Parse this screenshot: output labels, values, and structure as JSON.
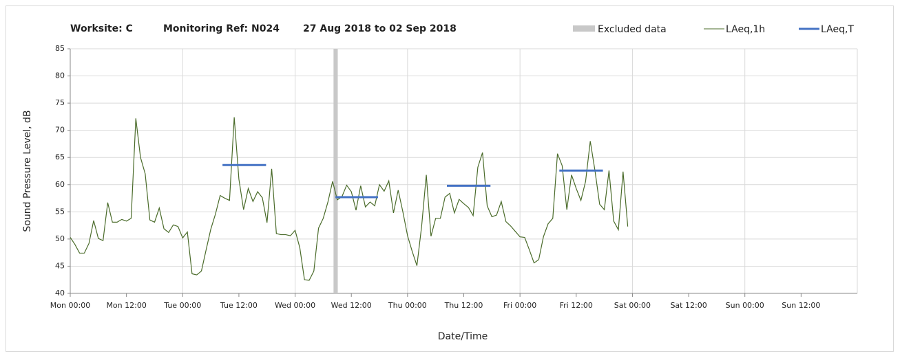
{
  "chart_data": {
    "type": "line",
    "title_parts": [
      "Worksite: C",
      "Monitoring Ref: N024",
      "27 Aug 2018 to 02 Sep 2018"
    ],
    "x_label": "Date/Time",
    "y_label": "Sound Pressure Level, dB",
    "xlim": [
      0,
      168
    ],
    "ylim": [
      40,
      85
    ],
    "yticks": [
      40,
      45,
      50,
      55,
      60,
      65,
      70,
      75,
      80,
      85
    ],
    "xticks": [
      {
        "value": 0,
        "label": "Mon 00:00"
      },
      {
        "value": 12,
        "label": "Mon 12:00"
      },
      {
        "value": 24,
        "label": "Tue 00:00"
      },
      {
        "value": 36,
        "label": "Tue 12:00"
      },
      {
        "value": 48,
        "label": "Wed 00:00"
      },
      {
        "value": 60,
        "label": "Wed 12:00"
      },
      {
        "value": 72,
        "label": "Thu 00:00"
      },
      {
        "value": 84,
        "label": "Thu 12:00"
      },
      {
        "value": 96,
        "label": "Fri 00:00"
      },
      {
        "value": 108,
        "label": "Fri 12:00"
      },
      {
        "value": 120,
        "label": "Sat 00:00"
      },
      {
        "value": 132,
        "label": "Sat 12:00"
      },
      {
        "value": 144,
        "label": "Sun 00:00"
      },
      {
        "value": 156,
        "label": "Sun 12:00"
      }
    ],
    "grid": true,
    "excluded": {
      "name": "Excluded data",
      "color": "#c8c8c8",
      "start": 56.2,
      "end": 57.1
    },
    "series": [
      {
        "name": "LAeq,1h",
        "color": "#4a6b2a",
        "x": [
          0,
          1,
          2,
          3,
          4,
          5,
          6,
          7,
          8,
          9,
          10,
          11,
          12,
          13,
          14,
          15,
          16,
          17,
          18,
          19,
          20,
          21,
          22,
          23,
          24,
          25,
          26,
          27,
          28,
          29,
          30,
          31,
          32,
          33,
          34,
          35,
          36,
          37,
          38,
          39,
          40,
          41,
          42,
          43,
          44,
          45,
          46,
          47,
          48,
          49,
          50,
          51,
          52,
          53,
          54,
          55,
          56,
          57,
          58,
          59,
          60,
          61,
          62,
          63,
          64,
          65,
          66,
          67,
          68,
          69,
          70,
          71,
          72,
          73,
          74,
          75,
          76,
          77,
          78,
          79,
          80,
          81,
          82,
          83,
          84,
          85,
          86,
          87,
          88,
          89,
          90,
          91,
          92,
          93,
          94,
          95,
          96,
          97,
          98,
          99,
          100,
          101,
          102,
          103,
          104,
          105,
          106,
          107,
          108,
          109,
          110,
          111,
          112,
          113,
          114,
          115,
          116,
          117,
          118,
          119
        ],
        "values": [
          50.3,
          49,
          47.4,
          47.4,
          49.2,
          53.4,
          50.1,
          49.7,
          56.7,
          53.1,
          53.1,
          53.6,
          53.3,
          53.8,
          72.2,
          65,
          62,
          53.5,
          53.1,
          55.7,
          51.9,
          51.2,
          52.6,
          52.3,
          50.2,
          51.3,
          43.6,
          43.4,
          44.1,
          48,
          51.8,
          54.6,
          58,
          57.5,
          57.1,
          72.4,
          61,
          55.4,
          59.3,
          56.9,
          58.7,
          57.6,
          53,
          62.9,
          51,
          50.8,
          50.8,
          50.6,
          51.6,
          48.4,
          42.5,
          42.4,
          44.1,
          52,
          53.8,
          56.8,
          60.6,
          57.2,
          57.8,
          59.9,
          58.7,
          55.3,
          59.8,
          55.9,
          56.8,
          56.1,
          60,
          58.8,
          60.7,
          54.8,
          59,
          55,
          50.6,
          47.7,
          45.1,
          52.3,
          61.8,
          50.5,
          53.8,
          53.8,
          57.7,
          58.4,
          54.8,
          57.3,
          56.5,
          55.8,
          54.3,
          63.2,
          65.9,
          56.1,
          54.1,
          54.4,
          56.9,
          53.2,
          52.4,
          51.4,
          50.4,
          50.3,
          48,
          45.6,
          46.2,
          50.4,
          52.8,
          53.8,
          65.7,
          63.5,
          55.4,
          61.8,
          59.3,
          57.1,
          60.6,
          68,
          62.6,
          56.4,
          55.4,
          62.6,
          53.3,
          51.7,
          62.4,
          52.3
        ]
      },
      {
        "name": "LAeq,T",
        "color": "#4472c4",
        "segments": [
          {
            "start": 32.5,
            "end": 41.8,
            "value": 63.6
          },
          {
            "start": 56.6,
            "end": 65.7,
            "value": 57.7
          },
          {
            "start": 80.4,
            "end": 89.7,
            "value": 59.8
          },
          {
            "start": 104.4,
            "end": 113.7,
            "value": 62.6
          }
        ]
      }
    ]
  }
}
